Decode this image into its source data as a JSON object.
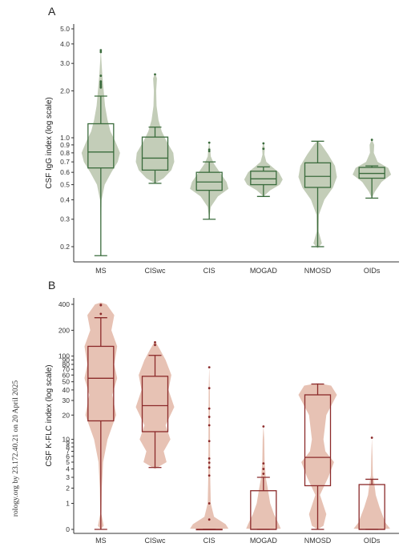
{
  "watermark": "rology.org by 23.172.40.21 on 20 April 2025",
  "chart_data": [
    {
      "type": "violin-box",
      "panel": "A",
      "ylabel": "CSF IgG index (log scale)",
      "scale": "log",
      "ylim": [
        0.17,
        5.5
      ],
      "yticks": [
        0.2,
        0.3,
        0.4,
        0.5,
        0.6,
        0.7,
        0.8,
        0.9,
        1.0,
        2.0,
        3.0,
        4.0,
        5.0
      ],
      "ytick_labels": [
        "0.2",
        "0.3",
        "0.4",
        "0.5",
        "0.6",
        "0.7",
        "0.8",
        "0.9",
        "1.0",
        "2.0",
        "3.0",
        "4.0",
        "5.0"
      ],
      "categories": [
        "MS",
        "CISwc",
        "CIS",
        "MOGAD",
        "NMOSD",
        "OIDs"
      ],
      "colors": {
        "fill": "#c3cdb8",
        "stroke": "#3a6b3c"
      },
      "groups": [
        {
          "name": "MS",
          "min": 0.175,
          "q1": 0.64,
          "median": 0.81,
          "q3": 1.23,
          "max": 1.85,
          "outliers": [
            2.1,
            2.15,
            2.2,
            2.25,
            2.3,
            2.5,
            3.55,
            3.65
          ],
          "violin": [
            [
              0.175,
              0.0
            ],
            [
              0.3,
              0.02
            ],
            [
              0.4,
              0.04
            ],
            [
              0.5,
              0.2
            ],
            [
              0.6,
              0.55
            ],
            [
              0.7,
              0.88
            ],
            [
              0.8,
              1.0
            ],
            [
              0.95,
              0.75
            ],
            [
              1.1,
              0.5
            ],
            [
              1.3,
              0.35
            ],
            [
              1.6,
              0.22
            ],
            [
              2.0,
              0.15
            ],
            [
              2.5,
              0.08
            ],
            [
              3.0,
              0.04
            ],
            [
              3.7,
              0.0
            ]
          ]
        },
        {
          "name": "CISwc",
          "min": 0.51,
          "q1": 0.62,
          "median": 0.74,
          "q3": 1.01,
          "max": 1.17,
          "outliers": [
            2.55
          ],
          "violin": [
            [
              0.51,
              0.0
            ],
            [
              0.55,
              0.45
            ],
            [
              0.62,
              0.85
            ],
            [
              0.7,
              1.0
            ],
            [
              0.8,
              0.95
            ],
            [
              0.95,
              0.6
            ],
            [
              1.1,
              0.35
            ],
            [
              1.3,
              0.18
            ],
            [
              1.6,
              0.08
            ],
            [
              2.0,
              0.06
            ],
            [
              2.4,
              0.1
            ],
            [
              2.6,
              0.0
            ]
          ]
        },
        {
          "name": "CIS",
          "min": 0.3,
          "q1": 0.46,
          "median": 0.52,
          "q3": 0.6,
          "max": 0.7,
          "outliers": [
            0.82,
            0.84,
            0.93
          ],
          "violin": [
            [
              0.3,
              0.0
            ],
            [
              0.36,
              0.08
            ],
            [
              0.42,
              0.45
            ],
            [
              0.47,
              1.0
            ],
            [
              0.52,
              0.9
            ],
            [
              0.6,
              0.55
            ],
            [
              0.68,
              0.25
            ],
            [
              0.76,
              0.08
            ],
            [
              0.85,
              0.05
            ],
            [
              0.95,
              0.0
            ]
          ]
        },
        {
          "name": "MOGAD",
          "min": 0.42,
          "q1": 0.5,
          "median": 0.545,
          "q3": 0.61,
          "max": 0.65,
          "outliers": [
            0.85,
            0.92
          ],
          "violin": [
            [
              0.42,
              0.0
            ],
            [
              0.46,
              0.35
            ],
            [
              0.5,
              0.85
            ],
            [
              0.54,
              1.0
            ],
            [
              0.6,
              0.8
            ],
            [
              0.65,
              0.45
            ],
            [
              0.7,
              0.15
            ],
            [
              0.78,
              0.05
            ],
            [
              0.86,
              0.07
            ],
            [
              0.93,
              0.0
            ]
          ]
        },
        {
          "name": "NMOSD",
          "min": 0.2,
          "q1": 0.48,
          "median": 0.565,
          "q3": 0.69,
          "max": 0.95,
          "outliers": [],
          "violin": [
            [
              0.195,
              0.0
            ],
            [
              0.21,
              0.22
            ],
            [
              0.25,
              0.05
            ],
            [
              0.32,
              0.06
            ],
            [
              0.4,
              0.35
            ],
            [
              0.48,
              0.8
            ],
            [
              0.56,
              1.0
            ],
            [
              0.66,
              0.9
            ],
            [
              0.78,
              0.55
            ],
            [
              0.9,
              0.2
            ],
            [
              0.96,
              0.0
            ]
          ]
        },
        {
          "name": "OIDs",
          "min": 0.41,
          "q1": 0.55,
          "median": 0.59,
          "q3": 0.645,
          "max": 0.66,
          "outliers": [
            0.97
          ],
          "violin": [
            [
              0.41,
              0.0
            ],
            [
              0.45,
              0.15
            ],
            [
              0.52,
              0.5
            ],
            [
              0.58,
              1.0
            ],
            [
              0.64,
              0.85
            ],
            [
              0.7,
              0.3
            ],
            [
              0.8,
              0.1
            ],
            [
              0.9,
              0.12
            ],
            [
              0.98,
              0.0
            ]
          ]
        }
      ]
    },
    {
      "type": "violin-box",
      "panel": "B",
      "ylabel": "CSF K-FLC index (log scale)",
      "scale": "log1p",
      "ylim": [
        0,
        450
      ],
      "yticks": [
        0,
        1,
        2,
        3,
        4,
        5,
        6,
        7,
        8,
        9,
        10,
        20,
        30,
        40,
        50,
        60,
        70,
        80,
        90,
        100,
        200,
        400
      ],
      "ytick_labels": [
        "0",
        "1",
        "2",
        "3",
        "4",
        "5",
        "6",
        "7",
        "8",
        "9",
        "10",
        "20",
        "30",
        "40",
        "50",
        "60",
        "70",
        "80",
        "90",
        "100",
        "200",
        "400"
      ],
      "categories": [
        "MS",
        "CISwc",
        "CIS",
        "MOGAD",
        "NMOSD",
        "OIDs"
      ],
      "colors": {
        "fill": "#e7c2b4",
        "stroke": "#8b2a2a"
      },
      "groups": [
        {
          "name": "MS",
          "min": 0,
          "q1": 17,
          "median": 55,
          "q3": 130,
          "max": 280,
          "outliers": [
            310,
            390,
            395
          ],
          "violin": [
            [
              0,
              0.0
            ],
            [
              0.1,
              0.15
            ],
            [
              0.5,
              0.03
            ],
            [
              2,
              0.05
            ],
            [
              5,
              0.12
            ],
            [
              10,
              0.35
            ],
            [
              20,
              0.8
            ],
            [
              35,
              0.6
            ],
            [
              55,
              0.85
            ],
            [
              80,
              0.7
            ],
            [
              130,
              0.85
            ],
            [
              200,
              0.55
            ],
            [
              300,
              0.7
            ],
            [
              400,
              0.3
            ],
            [
              420,
              0.0
            ]
          ]
        },
        {
          "name": "CISwc",
          "min": 4.2,
          "q1": 12.5,
          "median": 26,
          "q3": 58,
          "max": 102,
          "outliers": [
            135,
            145
          ],
          "violin": [
            [
              4.0,
              0.0
            ],
            [
              5,
              0.6
            ],
            [
              7,
              0.45
            ],
            [
              10,
              0.8
            ],
            [
              15,
              0.55
            ],
            [
              25,
              1.0
            ],
            [
              40,
              0.7
            ],
            [
              60,
              0.85
            ],
            [
              90,
              0.55
            ],
            [
              120,
              0.25
            ],
            [
              150,
              0.0
            ]
          ]
        },
        {
          "name": "CIS",
          "min": 0,
          "q1": 0,
          "median": 0,
          "q3": 0,
          "max": 0,
          "outliers": [
            0.3,
            1.0,
            3.2,
            4.2,
            4.9,
            5.6,
            9.5,
            15,
            19,
            24,
            42,
            74
          ],
          "violin": [
            [
              0,
              0.0
            ],
            [
              0.02,
              1.0
            ],
            [
              0.15,
              0.85
            ],
            [
              0.4,
              0.25
            ],
            [
              1.0,
              0.08
            ],
            [
              3,
              0.05
            ],
            [
              10,
              0.04
            ],
            [
              40,
              0.03
            ],
            [
              76,
              0.0
            ]
          ]
        },
        {
          "name": "MOGAD",
          "min": 0,
          "q1": 0,
          "median": 0,
          "q3": 1.8,
          "max": 3.0,
          "outliers": [
            3.4,
            4.0,
            4.8,
            14.5
          ],
          "violin": [
            [
              0,
              0.0
            ],
            [
              0.02,
              0.9
            ],
            [
              0.15,
              0.8
            ],
            [
              0.5,
              0.55
            ],
            [
              1.0,
              0.35
            ],
            [
              2.0,
              0.22
            ],
            [
              3.0,
              0.12
            ],
            [
              5,
              0.06
            ],
            [
              10,
              0.04
            ],
            [
              15,
              0.0
            ]
          ]
        },
        {
          "name": "NMOSD",
          "min": 0,
          "q1": 2.2,
          "median": 5.8,
          "q3": 35,
          "max": 47,
          "outliers": [],
          "violin": [
            [
              0,
              0.0
            ],
            [
              0.1,
              0.3
            ],
            [
              0.5,
              0.45
            ],
            [
              1.5,
              0.12
            ],
            [
              3,
              0.55
            ],
            [
              5,
              0.85
            ],
            [
              7,
              0.4
            ],
            [
              10,
              0.3
            ],
            [
              20,
              0.45
            ],
            [
              35,
              1.0
            ],
            [
              45,
              0.7
            ],
            [
              48,
              0.0
            ]
          ]
        },
        {
          "name": "OIDs",
          "min": 0,
          "q1": 0,
          "median": 0,
          "q3": 2.3,
          "max": 2.8,
          "outliers": [
            10.5
          ],
          "violin": [
            [
              0,
              0.0
            ],
            [
              0.02,
              0.95
            ],
            [
              0.2,
              0.7
            ],
            [
              0.8,
              0.4
            ],
            [
              1.5,
              0.2
            ],
            [
              2.5,
              0.12
            ],
            [
              3.2,
              0.05
            ],
            [
              6,
              0.03
            ],
            [
              10.5,
              0.0
            ]
          ]
        }
      ]
    }
  ]
}
